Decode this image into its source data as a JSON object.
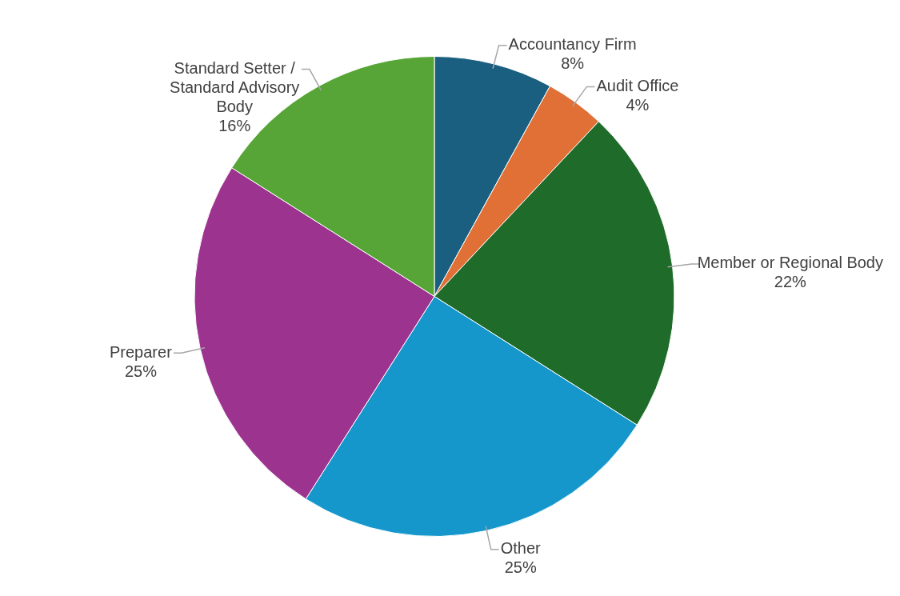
{
  "chart_data": {
    "type": "pie",
    "categories": [
      "Accountancy Firm",
      "Audit Office",
      "Member or Regional Body",
      "Other",
      "Preparer",
      "Standard Setter / Standard Advisory Body"
    ],
    "values": [
      8,
      4,
      22,
      25,
      25,
      16
    ],
    "colors": [
      "#1a5f80",
      "#e07035",
      "#1e6b2a",
      "#1597cc",
      "#9c338f",
      "#56a536"
    ],
    "value_labels": [
      "8%",
      "4%",
      "22%",
      "25%",
      "25%",
      "16%"
    ],
    "legend": false
  }
}
